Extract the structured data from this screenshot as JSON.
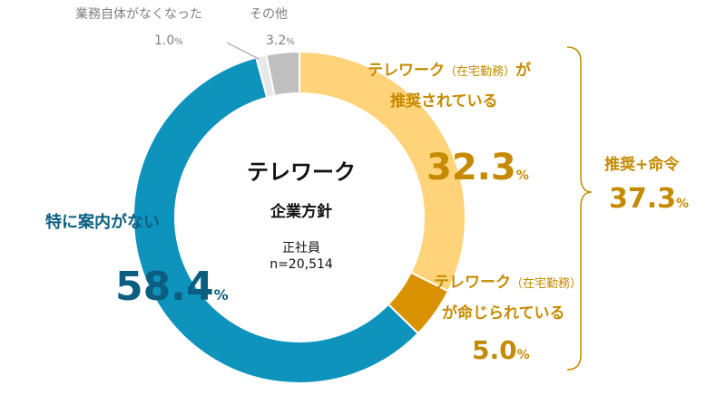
{
  "chart_data": {
    "type": "pie",
    "variant": "donut",
    "center": {
      "title": "テレワーク",
      "subtitle": "企業方針",
      "population": "正社員",
      "sample": "n=20,514"
    },
    "slices": [
      {
        "label_main": "テレワーク",
        "label_paren": "（在宅勤務）",
        "label_tail": "が",
        "label_line2": "推奨されている",
        "value": 32.3,
        "value_text": "32.3",
        "color": "#ffd37a"
      },
      {
        "label_main": "テレワーク",
        "label_paren": "（在宅勤務）",
        "label_tail": "",
        "label_line2": "が命じられている",
        "value": 5.0,
        "value_text": "5.0",
        "color": "#d99100"
      },
      {
        "label_main": "特に案内がない",
        "value": 58.4,
        "value_text": "58.4",
        "color": "#0e93bd"
      },
      {
        "label_main": "業務自体がなくなった",
        "value": 1.0,
        "value_text": "1.0",
        "color": "#e8e8e8"
      },
      {
        "label_main": "その他",
        "value": 3.2,
        "value_text": "3.2",
        "color": "#bfbfbf"
      }
    ],
    "unit": "%",
    "bracket": {
      "label": "推奨+命令",
      "value_text": "37.3",
      "unit": "%"
    }
  }
}
